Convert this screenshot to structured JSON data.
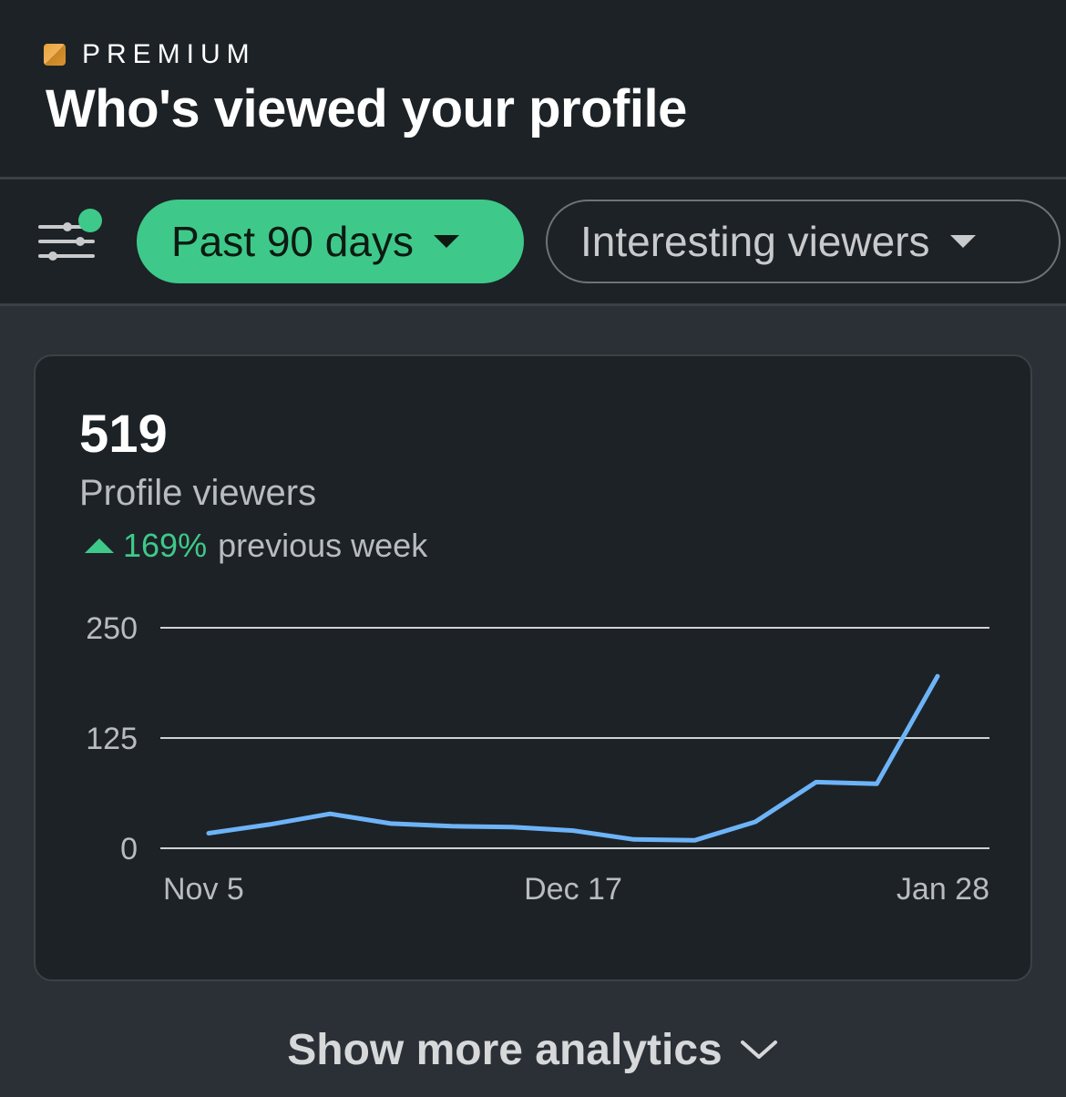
{
  "header": {
    "premium_label": "PREMIUM",
    "title": "Who's viewed your profile"
  },
  "filters": {
    "time_range": "Past 90 days",
    "viewer_type": "Interesting viewers"
  },
  "summary": {
    "count": "519",
    "label": "Profile viewers",
    "trend_percent": "169%",
    "trend_text": "previous week"
  },
  "chart_data": {
    "type": "line",
    "x_tick_labels": [
      "Nov 5",
      "Dec 17",
      "Jan 28"
    ],
    "y_tick_labels": [
      "250",
      "125",
      "0"
    ],
    "ylim": [
      0,
      250
    ],
    "y": [
      17,
      27,
      39,
      28,
      25,
      24,
      20,
      10,
      9,
      30,
      75,
      73,
      195
    ],
    "grid": true,
    "color": "#6db3f8"
  },
  "footer": {
    "show_more": "Show more analytics"
  },
  "colors": {
    "accent": "#3ec98a",
    "line": "#6db3f8",
    "premium": "#e9a23b"
  }
}
